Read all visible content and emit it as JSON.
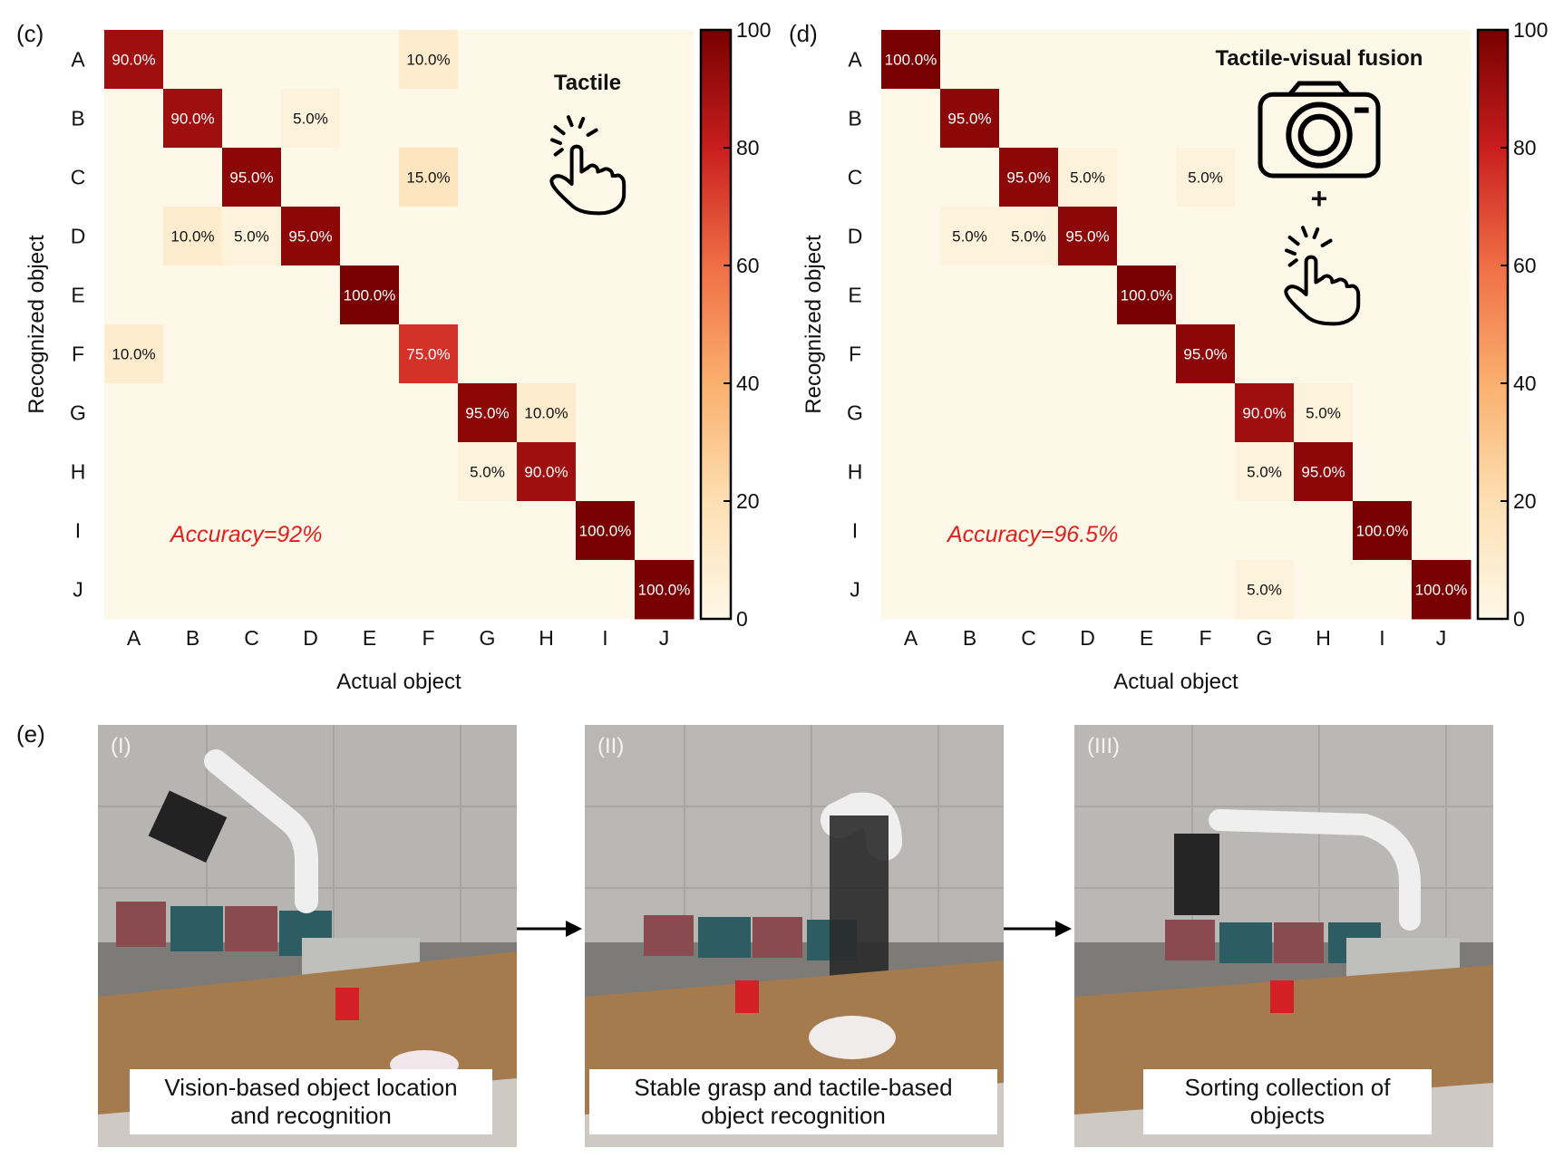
{
  "panel_labels": {
    "c": "(c)",
    "d": "(d)",
    "e": "(e)"
  },
  "chart_data": [
    {
      "type": "heatmap",
      "panel": "(c)",
      "title": "Tactile",
      "xlabel": "Actual object",
      "ylabel": "Recognized object",
      "x_categories": [
        "A",
        "B",
        "C",
        "D",
        "E",
        "F",
        "G",
        "H",
        "I",
        "J"
      ],
      "y_categories": [
        "A",
        "B",
        "C",
        "D",
        "E",
        "F",
        "G",
        "H",
        "I",
        "J"
      ],
      "colorbar": {
        "min": 0,
        "max": 100,
        "ticks": [
          0,
          20,
          40,
          60,
          80,
          100
        ]
      },
      "annotation": "Accuracy=92%",
      "annotation_color": "#e0201c",
      "values": [
        [
          90,
          0,
          0,
          0,
          0,
          10,
          0,
          0,
          0,
          0
        ],
        [
          0,
          90,
          0,
          5,
          0,
          0,
          0,
          0,
          0,
          0
        ],
        [
          0,
          0,
          95,
          0,
          0,
          15,
          0,
          0,
          0,
          0
        ],
        [
          0,
          10,
          5,
          95,
          0,
          0,
          0,
          0,
          0,
          0
        ],
        [
          0,
          0,
          0,
          0,
          100,
          0,
          0,
          0,
          0,
          0
        ],
        [
          10,
          0,
          0,
          0,
          0,
          75,
          0,
          0,
          0,
          0
        ],
        [
          0,
          0,
          0,
          0,
          0,
          0,
          95,
          10,
          0,
          0
        ],
        [
          0,
          0,
          0,
          0,
          0,
          0,
          5,
          90,
          0,
          0
        ],
        [
          0,
          0,
          0,
          0,
          0,
          0,
          0,
          0,
          100,
          0
        ],
        [
          0,
          0,
          0,
          0,
          0,
          0,
          0,
          0,
          0,
          100
        ]
      ]
    },
    {
      "type": "heatmap",
      "panel": "(d)",
      "title": "Tactile-visual fusion",
      "plus_sign": "+",
      "xlabel": "Actual object",
      "ylabel": "Recognized object",
      "x_categories": [
        "A",
        "B",
        "C",
        "D",
        "E",
        "F",
        "G",
        "H",
        "I",
        "J"
      ],
      "y_categories": [
        "A",
        "B",
        "C",
        "D",
        "E",
        "F",
        "G",
        "H",
        "I",
        "J"
      ],
      "colorbar": {
        "min": 0,
        "max": 100,
        "ticks": [
          0,
          20,
          40,
          60,
          80,
          100
        ]
      },
      "annotation": "Accuracy=96.5%",
      "annotation_color": "#e0201c",
      "values": [
        [
          100,
          0,
          0,
          0,
          0,
          0,
          0,
          0,
          0,
          0
        ],
        [
          0,
          95,
          0,
          0,
          0,
          0,
          0,
          0,
          0,
          0
        ],
        [
          0,
          0,
          95,
          5,
          0,
          5,
          0,
          0,
          0,
          0
        ],
        [
          0,
          5,
          5,
          95,
          0,
          0,
          0,
          0,
          0,
          0
        ],
        [
          0,
          0,
          0,
          0,
          100,
          0,
          0,
          0,
          0,
          0
        ],
        [
          0,
          0,
          0,
          0,
          0,
          95,
          0,
          0,
          0,
          0
        ],
        [
          0,
          0,
          0,
          0,
          0,
          0,
          90,
          5,
          0,
          0
        ],
        [
          0,
          0,
          0,
          0,
          0,
          0,
          5,
          95,
          0,
          0
        ],
        [
          0,
          0,
          0,
          0,
          0,
          0,
          0,
          0,
          100,
          0
        ],
        [
          0,
          0,
          0,
          0,
          0,
          0,
          5,
          0,
          0,
          100
        ]
      ]
    }
  ],
  "photos": [
    {
      "num": "(I)",
      "caption": "Vision-based object location\nand recognition"
    },
    {
      "num": "(II)",
      "caption": "Stable grasp and tactile-based\nobject recognition"
    },
    {
      "num": "(III)",
      "caption": "Sorting collection of\nobjects"
    }
  ]
}
